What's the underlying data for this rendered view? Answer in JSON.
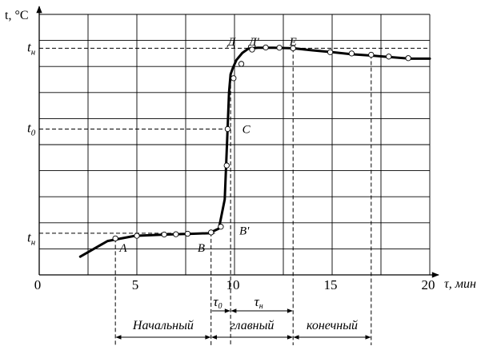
{
  "chart_data": {
    "type": "line",
    "xlabel": "τ, мин",
    "ylabel": "t, °C",
    "xlim": [
      0,
      20
    ],
    "x_ticks": [
      "0",
      "5",
      "10",
      "15",
      "20"
    ],
    "y_tick_labels": [
      {
        "text": "t",
        "sub": "н",
        "value": 1.4
      },
      {
        "text": "t",
        "sub": "0",
        "value": 5.6
      },
      {
        "text": "t",
        "sub": "н",
        "value": 8.7
      }
    ],
    "ylim": [
      0,
      10
    ],
    "grid": true,
    "curve": {
      "x": [
        2.1,
        3.5,
        4.9,
        6.5,
        7.9,
        8.7,
        9.2,
        9.5,
        9.62,
        9.72,
        9.8,
        9.92,
        10.1,
        10.4,
        10.7,
        11.2,
        12,
        13,
        14,
        15,
        16,
        17,
        18,
        19,
        20
      ],
      "y": [
        0.7,
        1.3,
        1.5,
        1.55,
        1.58,
        1.6,
        1.78,
        2.9,
        5.1,
        7.0,
        7.7,
        7.95,
        8.25,
        8.52,
        8.68,
        8.72,
        8.72,
        8.7,
        8.62,
        8.55,
        8.47,
        8.42,
        8.36,
        8.3,
        8.3
      ]
    },
    "markers": {
      "x": [
        3.9,
        5.0,
        6.4,
        7.0,
        7.6,
        8.8,
        9.3,
        9.6,
        9.65,
        9.95,
        10.35,
        10.9,
        11.6,
        12.3,
        13.0,
        14.9,
        16.0,
        17.0,
        17.9,
        18.9
      ],
      "y": [
        1.4,
        1.5,
        1.55,
        1.56,
        1.58,
        1.63,
        1.85,
        4.2,
        5.6,
        7.55,
        8.1,
        8.65,
        8.73,
        8.72,
        8.7,
        8.55,
        8.5,
        8.45,
        8.38,
        8.32
      ]
    },
    "point_labels": [
      {
        "text": "A",
        "x": 4.3,
        "y": 1.05
      },
      {
        "text": "B",
        "x": 8.3,
        "y": 1.05
      },
      {
        "text": "B'",
        "x": 10.5,
        "y": 1.7
      },
      {
        "text": "C",
        "x": 10.6,
        "y": 5.6
      },
      {
        "text": "Д",
        "x": 9.85,
        "y": 8.95
      },
      {
        "text": "Д'",
        "x": 11.0,
        "y": 8.95
      },
      {
        "text": "E",
        "x": 13.0,
        "y": 8.95
      }
    ],
    "guides": {
      "vertical_x": [
        3.9,
        8.8,
        9.8,
        13.0,
        17.0
      ],
      "horizontal": [
        {
          "y": 1.6,
          "x_to": 9.0
        },
        {
          "y": 5.6,
          "x_to": 9.65
        },
        {
          "y": 8.7,
          "x_to": 20.0
        }
      ]
    },
    "phases": {
      "labels": [
        "Начальный",
        "главный",
        "конечный"
      ],
      "bounds_x": [
        3.9,
        8.8,
        13.0,
        17.0
      ]
    },
    "intervals": [
      {
        "text": "τ",
        "sub": "0",
        "x_start": 8.8,
        "x_end": 9.8
      },
      {
        "text": "τ",
        "sub": "н",
        "x_start": 9.8,
        "x_end": 13.0
      }
    ]
  }
}
